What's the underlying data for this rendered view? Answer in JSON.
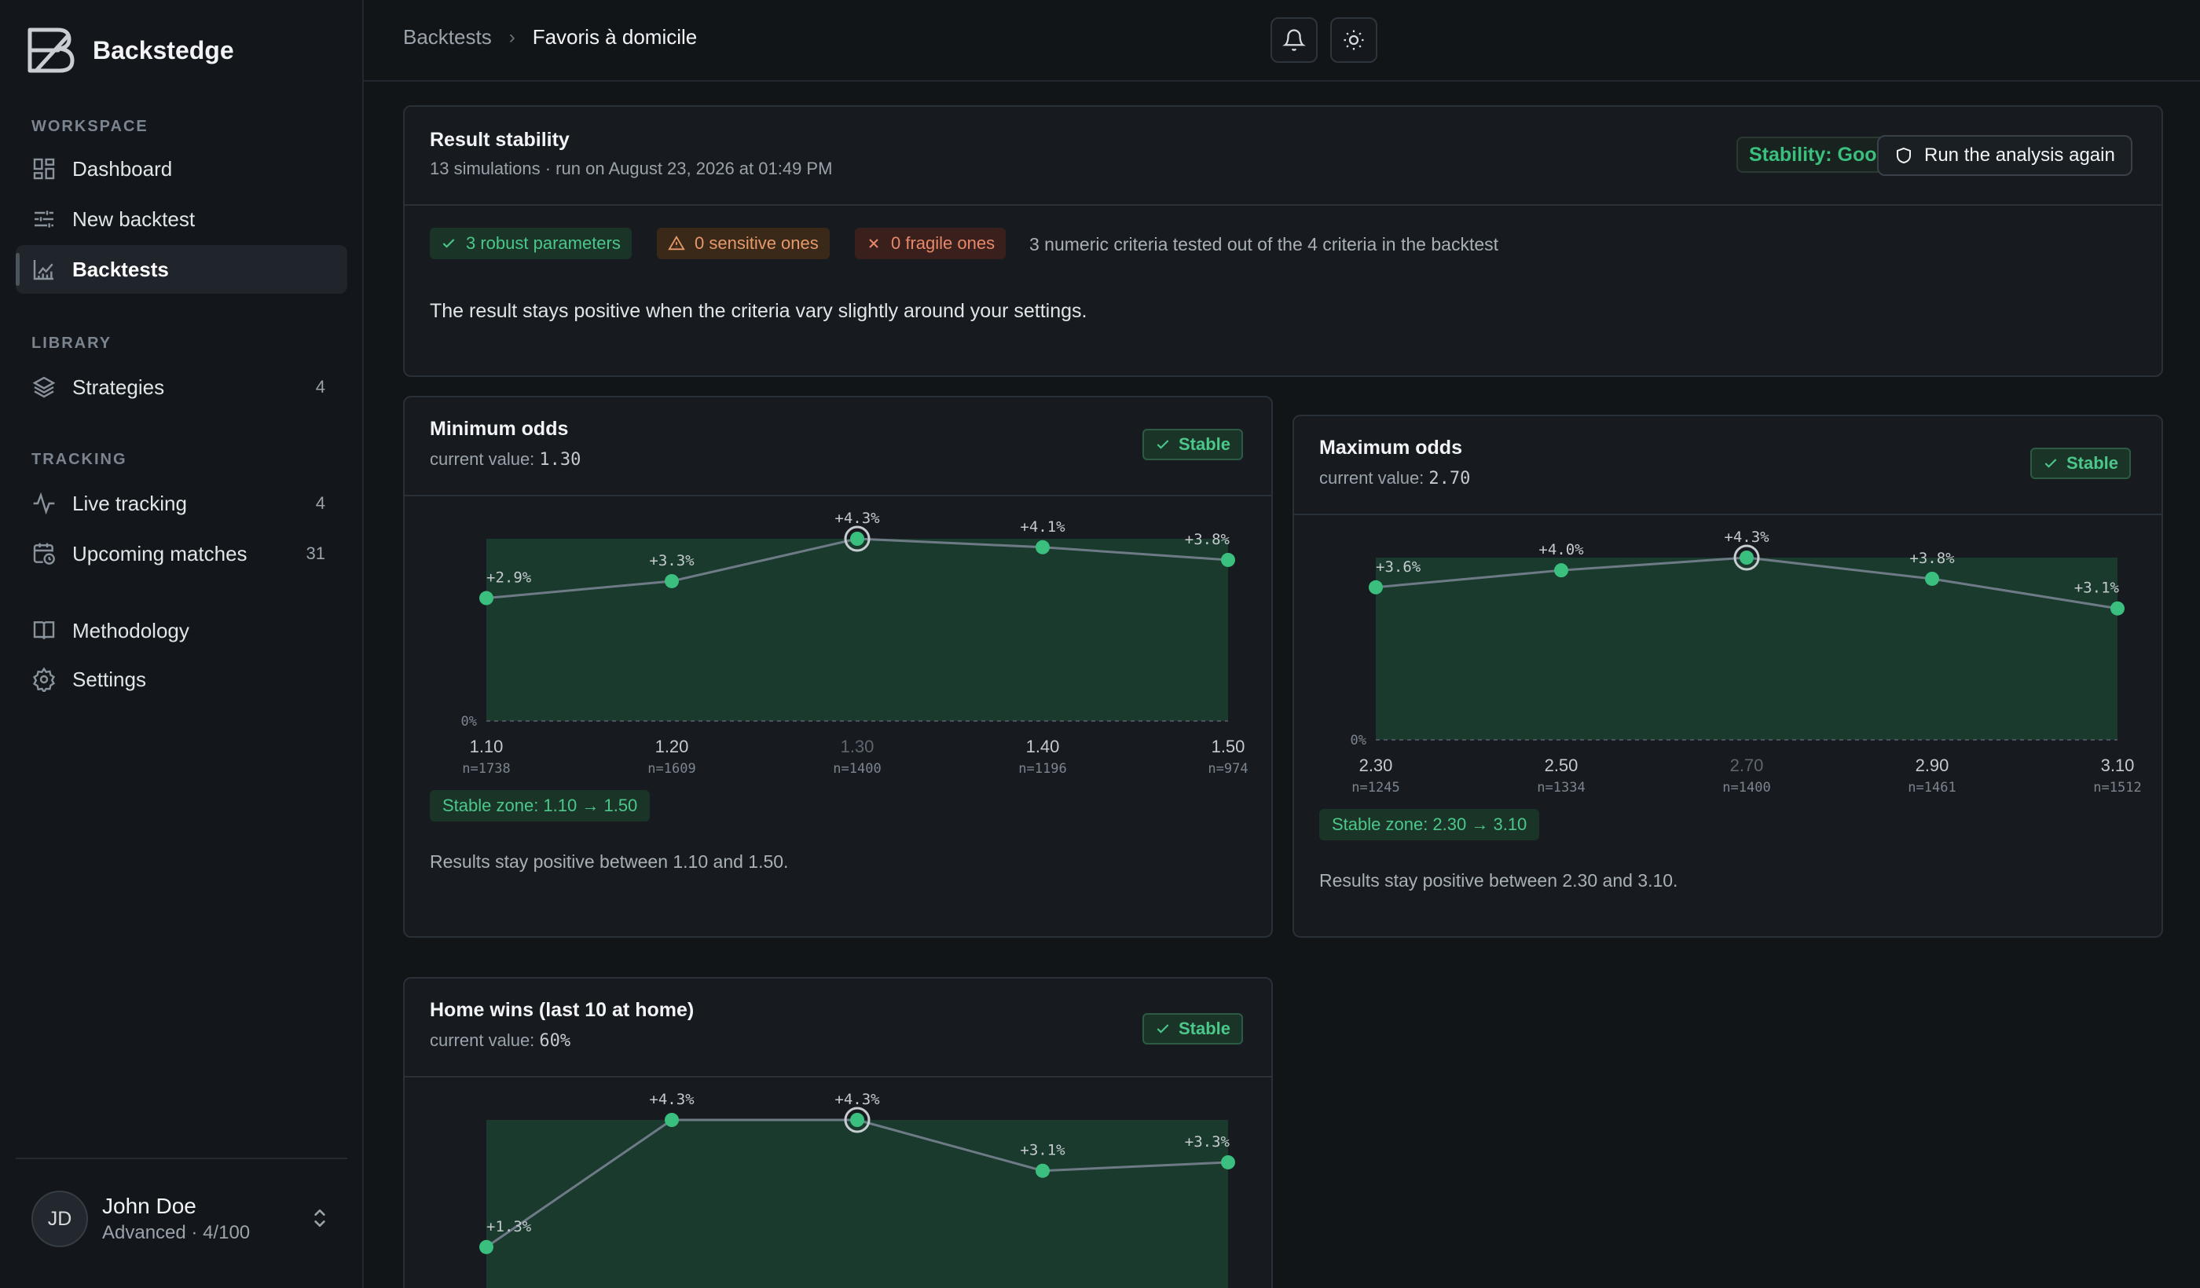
{
  "app": {
    "name": "Backstedge"
  },
  "sidebar": {
    "sections": [
      {
        "label": "WORKSPACE"
      },
      {
        "label": "LIBRARY"
      },
      {
        "label": "TRACKING"
      }
    ],
    "items": [
      {
        "label": "Dashboard",
        "icon": "dashboard-icon"
      },
      {
        "label": "New backtest",
        "icon": "sliders-icon"
      },
      {
        "label": "Backtests",
        "icon": "chart-icon",
        "active": true
      },
      {
        "label": "Strategies",
        "icon": "layers-icon",
        "count": "4"
      },
      {
        "label": "Live tracking",
        "icon": "activity-icon",
        "count": "4"
      },
      {
        "label": "Upcoming matches",
        "icon": "calendar-clock-icon",
        "count": "31"
      },
      {
        "label": "Methodology",
        "icon": "book-icon"
      },
      {
        "label": "Settings",
        "icon": "gear-icon"
      }
    ],
    "user": {
      "initials": "JD",
      "name": "John Doe",
      "subtitle": "Advanced · 4/100"
    }
  },
  "header": {
    "breadcrumb": [
      "Backtests",
      "Favoris à domicile"
    ],
    "bell_icon": "bell-icon",
    "theme_icon": "sun-icon"
  },
  "stability": {
    "title": "Result stability",
    "subtitle": "13 simulations · run on August 23, 2026 at 01:49 PM",
    "status": "Stability: Good",
    "run_button": "Run the analysis again",
    "badges": {
      "robust": "3 robust parameters",
      "sensitive": "0 sensitive ones",
      "fragile": "0 fragile ones"
    },
    "criteria_note": "3 numeric criteria tested out of the 4 criteria in the backtest",
    "summary": "The result stays positive when the criteria vary slightly around your settings.",
    "colors": {
      "accent": "#3bbf7f",
      "area": "#1a3a2e",
      "line": "#6e7b86"
    }
  },
  "params": [
    {
      "title": "Minimum odds",
      "current_label": "current value:",
      "current_value": "1.30",
      "status": "Stable",
      "zone": "Stable zone: 1.10 → 1.50",
      "note": "Results stay positive between 1.10 and 1.50."
    },
    {
      "title": "Maximum odds",
      "current_label": "current value:",
      "current_value": "2.70",
      "status": "Stable",
      "zone": "Stable zone: 2.30 → 3.10",
      "note": "Results stay positive between 2.30 and 3.10."
    },
    {
      "title": "Home wins (last 10 at home)",
      "current_label": "current value:",
      "current_value": "60%",
      "status": "Stable"
    }
  ],
  "chart_data": [
    {
      "type": "line",
      "title": "Minimum odds",
      "x": [
        "1.10",
        "1.20",
        "1.30",
        "1.40",
        "1.50"
      ],
      "n": [
        "n=1738",
        "n=1609",
        "n=1400",
        "n=1196",
        "n=974"
      ],
      "values": [
        2.9,
        3.3,
        4.3,
        4.1,
        3.8
      ],
      "labels": [
        "+2.9%",
        "+3.3%",
        "+4.3%",
        "+4.1%",
        "+3.8%"
      ],
      "current_index": 2,
      "baseline_label": "0%",
      "ylim": [
        0,
        4.3
      ]
    },
    {
      "type": "line",
      "title": "Maximum odds",
      "x": [
        "2.30",
        "2.50",
        "2.70",
        "2.90",
        "3.10"
      ],
      "n": [
        "n=1245",
        "n=1334",
        "n=1400",
        "n=1461",
        "n=1512"
      ],
      "values": [
        3.6,
        4.0,
        4.3,
        3.8,
        3.1
      ],
      "labels": [
        "+3.6%",
        "+4.0%",
        "+4.3%",
        "+3.8%",
        "+3.1%"
      ],
      "current_index": 2,
      "baseline_label": "0%",
      "ylim": [
        0,
        4.3
      ]
    },
    {
      "type": "line",
      "title": "Home wins (last 10 at home)",
      "values": [
        1.3,
        4.3,
        4.3,
        3.1,
        3.3
      ],
      "labels": [
        "+1.3%",
        "+4.3%",
        "+4.3%",
        "+3.1%",
        "+3.3%"
      ],
      "current_index": 2,
      "ylim": [
        0,
        4.3
      ]
    }
  ]
}
